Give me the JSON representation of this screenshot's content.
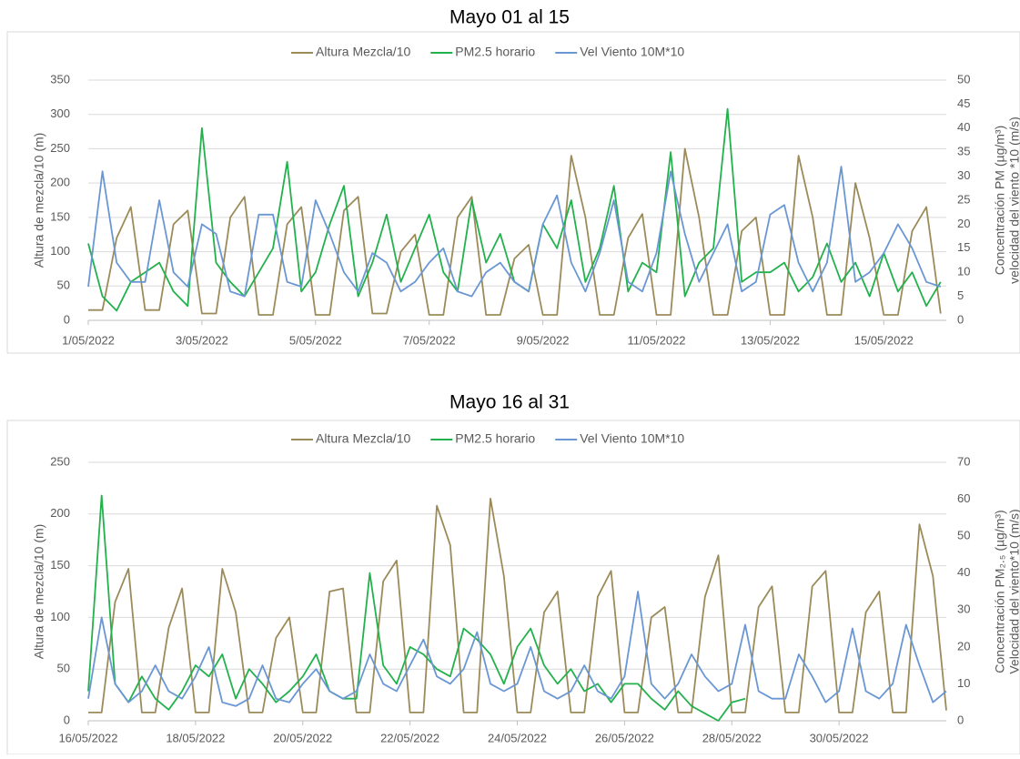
{
  "chart_data": [
    {
      "type": "line",
      "title": "Mayo 01 al 15",
      "ylabel": "Altura de mezcla/10 (m)",
      "y2label": [
        "Concentración PM (µg/m³)",
        "velocidad del viento *10 (m/s)"
      ],
      "legend": "top",
      "grid": true,
      "xlim": [
        1,
        16.1
      ],
      "xticks": [
        {
          "value": 1,
          "label": "1/05/2022"
        },
        {
          "value": 3,
          "label": "3/05/2022"
        },
        {
          "value": 5,
          "label": "5/05/2022"
        },
        {
          "value": 7,
          "label": "7/05/2022"
        },
        {
          "value": 9,
          "label": "9/05/2022"
        },
        {
          "value": 11,
          "label": "11/05/2022"
        },
        {
          "value": 13,
          "label": "13/05/2022"
        },
        {
          "value": 15,
          "label": "15/05/2022"
        }
      ],
      "ylim": [
        0,
        350
      ],
      "yticks": [
        0,
        50,
        100,
        150,
        200,
        250,
        300,
        350
      ],
      "y2lim": [
        0,
        50
      ],
      "y2ticks": [
        0,
        5,
        10,
        15,
        20,
        25,
        30,
        35,
        40,
        45,
        50
      ],
      "x": [
        1,
        1.25,
        1.5,
        1.75,
        2,
        2.25,
        2.5,
        2.75,
        3,
        3.25,
        3.5,
        3.75,
        4,
        4.25,
        4.5,
        4.75,
        5,
        5.25,
        5.5,
        5.75,
        6,
        6.25,
        6.5,
        6.75,
        7,
        7.25,
        7.5,
        7.75,
        8,
        8.25,
        8.5,
        8.75,
        9,
        9.25,
        9.5,
        9.75,
        10,
        10.25,
        10.5,
        10.75,
        11,
        11.25,
        11.5,
        11.75,
        12,
        12.25,
        12.5,
        12.75,
        13,
        13.25,
        13.5,
        13.75,
        14,
        14.25,
        14.5,
        14.75,
        15,
        15.25,
        15.5,
        15.75,
        16
      ],
      "series": [
        {
          "name": "Altura Mezcla/10",
          "color": "#9c8b5a",
          "values": [
            15,
            15,
            120,
            165,
            15,
            15,
            140,
            160,
            10,
            10,
            150,
            180,
            8,
            8,
            140,
            165,
            8,
            8,
            160,
            180,
            10,
            10,
            100,
            125,
            8,
            8,
            150,
            180,
            8,
            8,
            90,
            110,
            8,
            8,
            240,
            150,
            8,
            8,
            120,
            155,
            8,
            8,
            250,
            150,
            8,
            8,
            130,
            150,
            8,
            8,
            240,
            150,
            8,
            8,
            200,
            120,
            8,
            8,
            130,
            165,
            10
          ]
        },
        {
          "name": "PM2.5 horario",
          "color": "#22b14c",
          "axis": "y2",
          "values": [
            16,
            5,
            2,
            8,
            10,
            12,
            6,
            3,
            40,
            12,
            8,
            5,
            10,
            15,
            33,
            6,
            10,
            20,
            28,
            5,
            12,
            22,
            8,
            15,
            22,
            10,
            6,
            25,
            12,
            18,
            8,
            6,
            20,
            15,
            25,
            8,
            15,
            28,
            6,
            12,
            10,
            35,
            5,
            12,
            15,
            44,
            8,
            10,
            10,
            12,
            6,
            9,
            16,
            8,
            12,
            5,
            14,
            6,
            10,
            3,
            8
          ]
        },
        {
          "name": "Vel Viento 10M*10",
          "color": "#6a97d4",
          "axis": "y2",
          "values": [
            7,
            31,
            12,
            8,
            8,
            25,
            10,
            7,
            20,
            18,
            6,
            5,
            22,
            22,
            8,
            7,
            25,
            18,
            10,
            6,
            14,
            12,
            6,
            8,
            12,
            15,
            6,
            5,
            10,
            12,
            8,
            6,
            20,
            26,
            12,
            6,
            14,
            25,
            8,
            6,
            14,
            31,
            18,
            8,
            14,
            20,
            6,
            8,
            22,
            24,
            12,
            6,
            12,
            32,
            8,
            10,
            14,
            20,
            15,
            8,
            7
          ]
        }
      ]
    },
    {
      "type": "line",
      "title": "Mayo 16 al 31",
      "ylabel": "Altura de mezcla/10 (m)",
      "y2label": [
        "Concentración PM₂.₅ (µg/m³)",
        "Velocidad del viento*10 (m/s)"
      ],
      "legend": "top",
      "grid": true,
      "xlim": [
        16,
        32
      ],
      "xticks": [
        {
          "value": 16,
          "label": "16/05/2022"
        },
        {
          "value": 18,
          "label": "18/05/2022"
        },
        {
          "value": 20,
          "label": "20/05/2022"
        },
        {
          "value": 22,
          "label": "22/05/2022"
        },
        {
          "value": 24,
          "label": "24/05/2022"
        },
        {
          "value": 26,
          "label": "26/05/2022"
        },
        {
          "value": 28,
          "label": "28/05/2022"
        },
        {
          "value": 30,
          "label": "30/05/2022"
        }
      ],
      "ylim": [
        0,
        250
      ],
      "yticks": [
        0,
        50,
        100,
        150,
        200,
        250
      ],
      "y2lim": [
        0,
        70
      ],
      "y2ticks": [
        0,
        10,
        20,
        30,
        40,
        50,
        60,
        70
      ],
      "x": [
        16,
        16.25,
        16.5,
        16.75,
        17,
        17.25,
        17.5,
        17.75,
        18,
        18.25,
        18.5,
        18.75,
        19,
        19.25,
        19.5,
        19.75,
        20,
        20.25,
        20.5,
        20.75,
        21,
        21.25,
        21.5,
        21.75,
        22,
        22.25,
        22.5,
        22.75,
        23,
        23.25,
        23.5,
        23.75,
        24,
        24.25,
        24.5,
        24.75,
        25,
        25.25,
        25.5,
        25.75,
        26,
        26.25,
        26.5,
        26.75,
        27,
        27.25,
        27.5,
        27.75,
        28,
        28.25,
        28.5,
        28.75,
        29,
        29.25,
        29.5,
        29.75,
        30,
        30.25,
        30.5,
        30.75,
        31,
        31.25,
        31.5,
        31.75,
        32
      ],
      "series": [
        {
          "name": "Altura Mezcla/10",
          "color": "#9c8b5a",
          "values": [
            8,
            8,
            115,
            147,
            8,
            8,
            90,
            128,
            8,
            8,
            147,
            105,
            8,
            8,
            80,
            100,
            8,
            8,
            125,
            128,
            8,
            8,
            135,
            155,
            8,
            8,
            208,
            170,
            8,
            8,
            215,
            140,
            8,
            8,
            105,
            125,
            8,
            8,
            120,
            145,
            8,
            8,
            100,
            110,
            8,
            8,
            120,
            160,
            8,
            8,
            110,
            130,
            8,
            8,
            130,
            145,
            8,
            8,
            105,
            125,
            8,
            8,
            190,
            140,
            10
          ]
        },
        {
          "name": "PM2.5 horario",
          "color": "#22b14c",
          "axis": "y2",
          "values": [
            8,
            61,
            10,
            5,
            12,
            6,
            3,
            8,
            15,
            12,
            18,
            6,
            14,
            10,
            5,
            8,
            12,
            18,
            8,
            6,
            6,
            40,
            15,
            10,
            20,
            18,
            14,
            12,
            25,
            22,
            18,
            10,
            20,
            25,
            15,
            10,
            14,
            8,
            10,
            5,
            10,
            10,
            6,
            3,
            8,
            4,
            2,
            0,
            5,
            6,
            null,
            null,
            null,
            null,
            null,
            null,
            null,
            null,
            null,
            null,
            null,
            null,
            null,
            null,
            null
          ]
        },
        {
          "name": "Vel Viento 10M*10",
          "color": "#6a97d4",
          "axis": "y2",
          "values": [
            6,
            28,
            10,
            5,
            8,
            15,
            8,
            6,
            12,
            20,
            5,
            4,
            6,
            15,
            6,
            5,
            10,
            14,
            8,
            6,
            8,
            18,
            10,
            8,
            15,
            22,
            12,
            10,
            14,
            24,
            10,
            8,
            10,
            20,
            8,
            6,
            8,
            15,
            8,
            6,
            12,
            35,
            10,
            6,
            10,
            18,
            12,
            8,
            10,
            26,
            8,
            6,
            6,
            18,
            12,
            5,
            8,
            25,
            8,
            6,
            10,
            26,
            15,
            5,
            8
          ]
        }
      ]
    }
  ]
}
